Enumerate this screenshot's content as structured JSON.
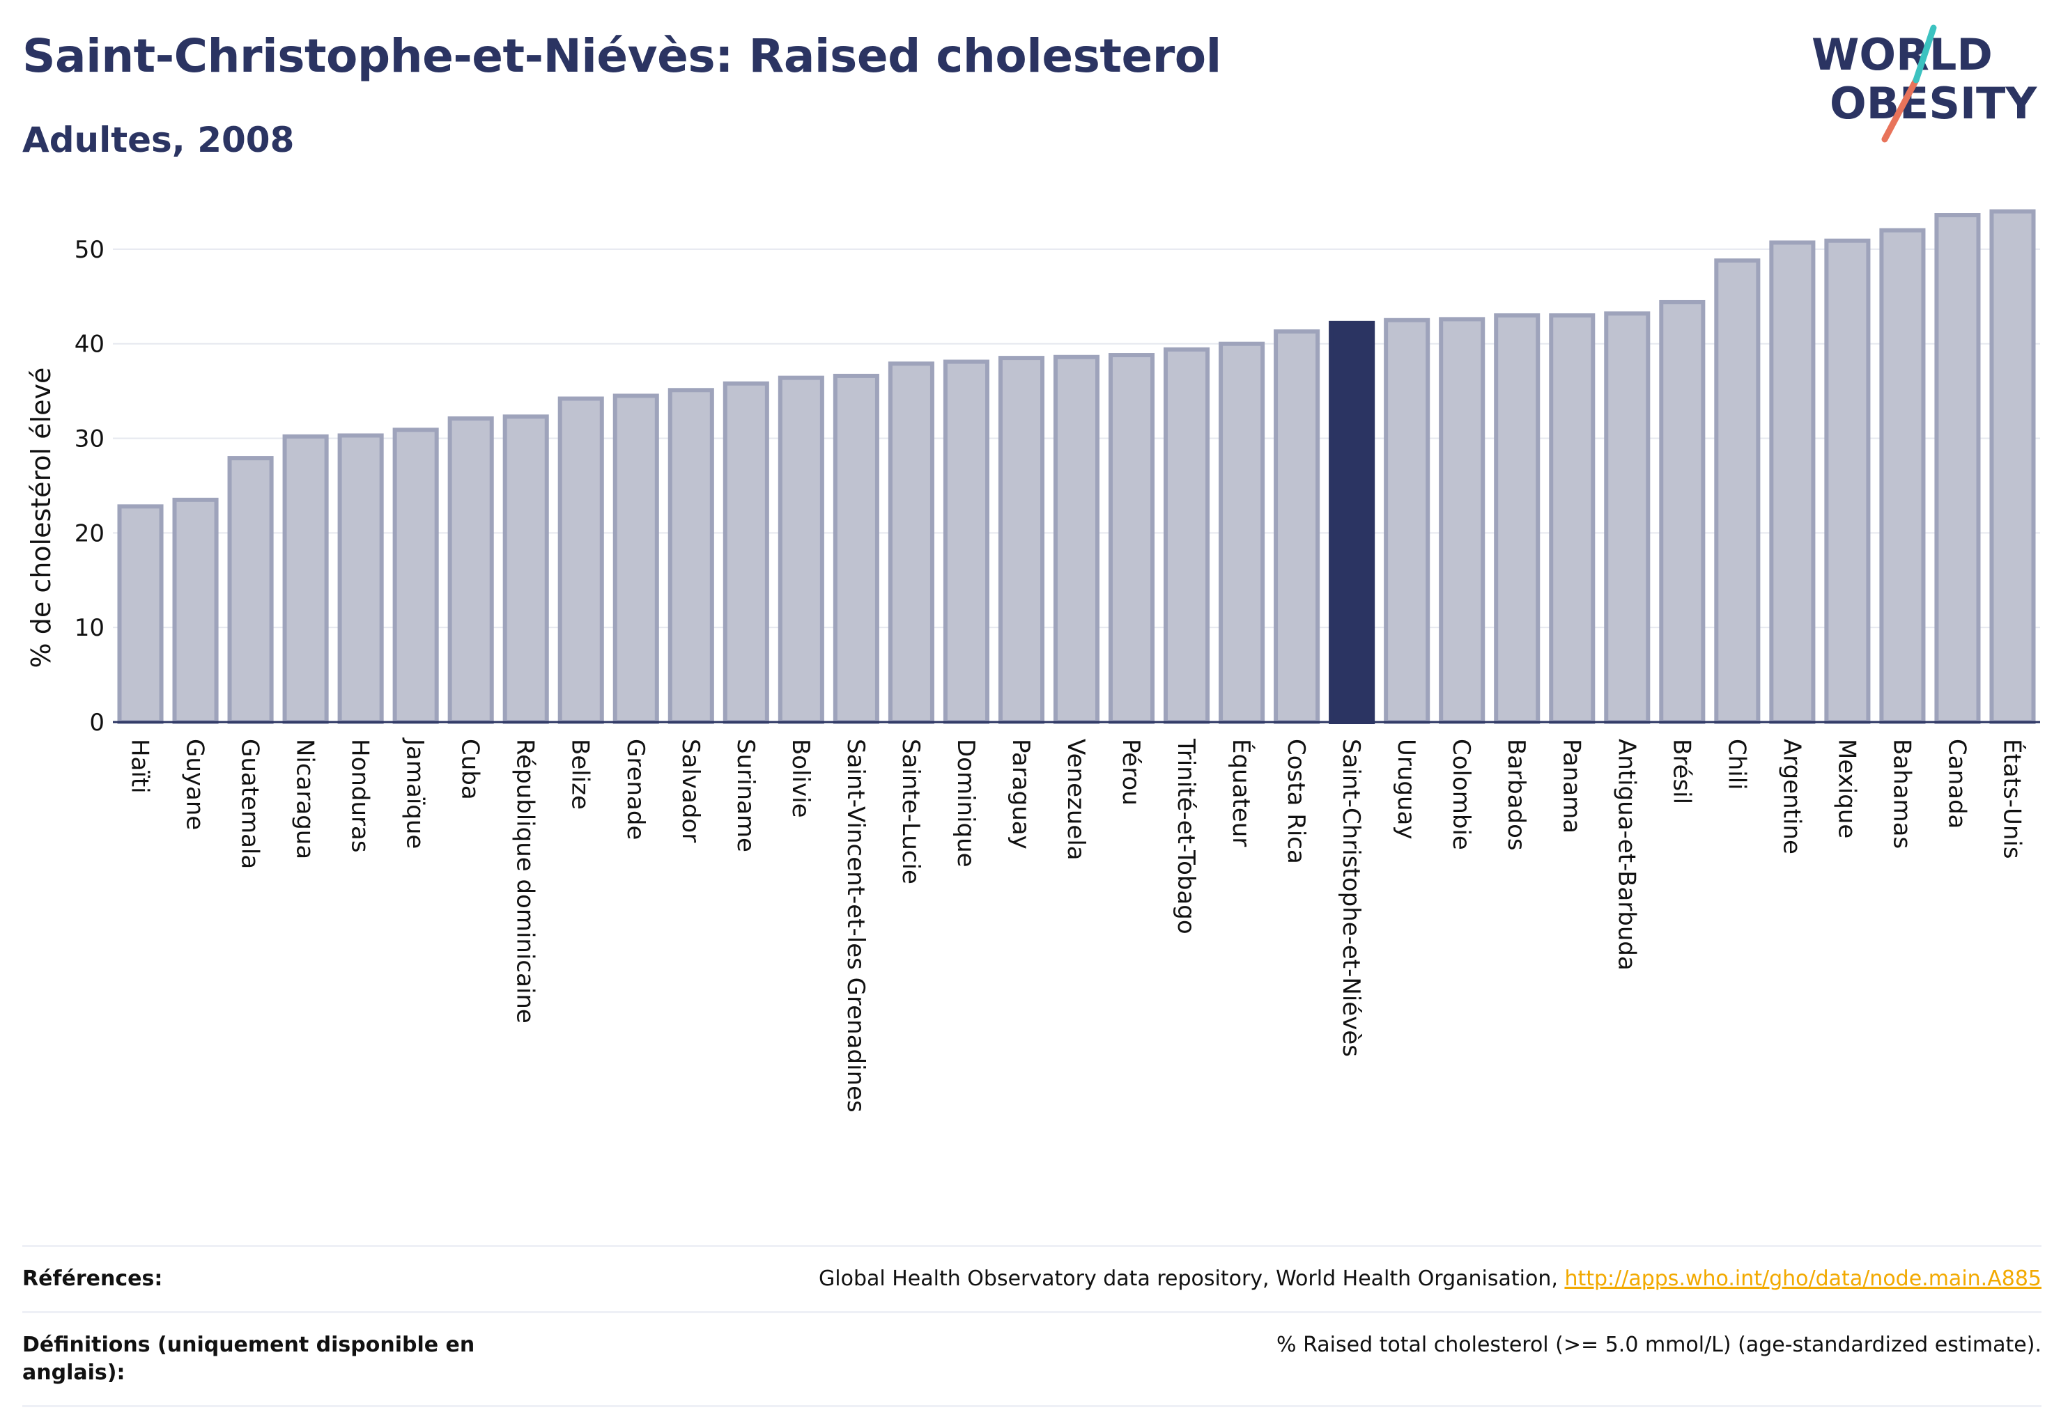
{
  "header": {
    "title": "Saint-Christophe-et-Niévès: Raised cholesterol",
    "subtitle": "Adultes, 2008"
  },
  "logo": {
    "line1": "WORLD",
    "line2": "OBESITY"
  },
  "chart_data": {
    "type": "bar",
    "title": "Saint-Christophe-et-Niévès: Raised cholesterol",
    "subtitle": "Adultes, 2008",
    "ylabel": "% de cholestérol élevé",
    "xlabel": "",
    "ylim": [
      0,
      55
    ],
    "yticks": [
      0,
      10,
      20,
      30,
      40,
      50
    ],
    "grid": true,
    "highlight": "Saint-Christophe-et-Niévès",
    "colors": {
      "bar": "#bfc2d0",
      "bar_edge": "#9ea3bb",
      "highlight": "#2b3462"
    },
    "categories": [
      "Haïti",
      "Guyane",
      "Guatemala",
      "Nicaragua",
      "Honduras",
      "Jamaïque",
      "Cuba",
      "République dominicaine",
      "Belize",
      "Grenade",
      "Salvador",
      "Suriname",
      "Bolivie",
      "Saint-Vincent-et-les Grenadines",
      "Sainte-Lucie",
      "Dominique",
      "Paraguay",
      "Venezuela",
      "Pérou",
      "Trinité-et-Tobago",
      "Équateur",
      "Costa Rica",
      "Saint-Christophe-et-Niévès",
      "Uruguay",
      "Colombie",
      "Barbados",
      "Panama",
      "Antigua-et-Barbuda",
      "Brésil",
      "Chili",
      "Argentine",
      "Mexique",
      "Bahamas",
      "Canada",
      "États-Unis"
    ],
    "values": [
      22.8,
      23.5,
      27.9,
      30.2,
      30.3,
      30.9,
      32.1,
      32.3,
      34.2,
      34.5,
      35.1,
      35.8,
      36.4,
      36.6,
      37.9,
      38.1,
      38.5,
      38.6,
      38.8,
      39.4,
      40.0,
      41.3,
      42.2,
      42.5,
      42.6,
      43.0,
      43.0,
      43.2,
      44.4,
      48.8,
      50.7,
      50.9,
      52.0,
      53.6,
      54.0
    ]
  },
  "footer": {
    "references_label": "Références:",
    "references_text": "Global Health Observatory data repository, World Health Organisation, ",
    "references_link": "http://apps.who.int/gho/data/node.main.A885",
    "definitions_label": "Définitions (uniquement disponible en anglais):",
    "definitions_text": "% Raised total cholesterol (>= 5.0 mmol/L) (age-standardized estimate)."
  }
}
